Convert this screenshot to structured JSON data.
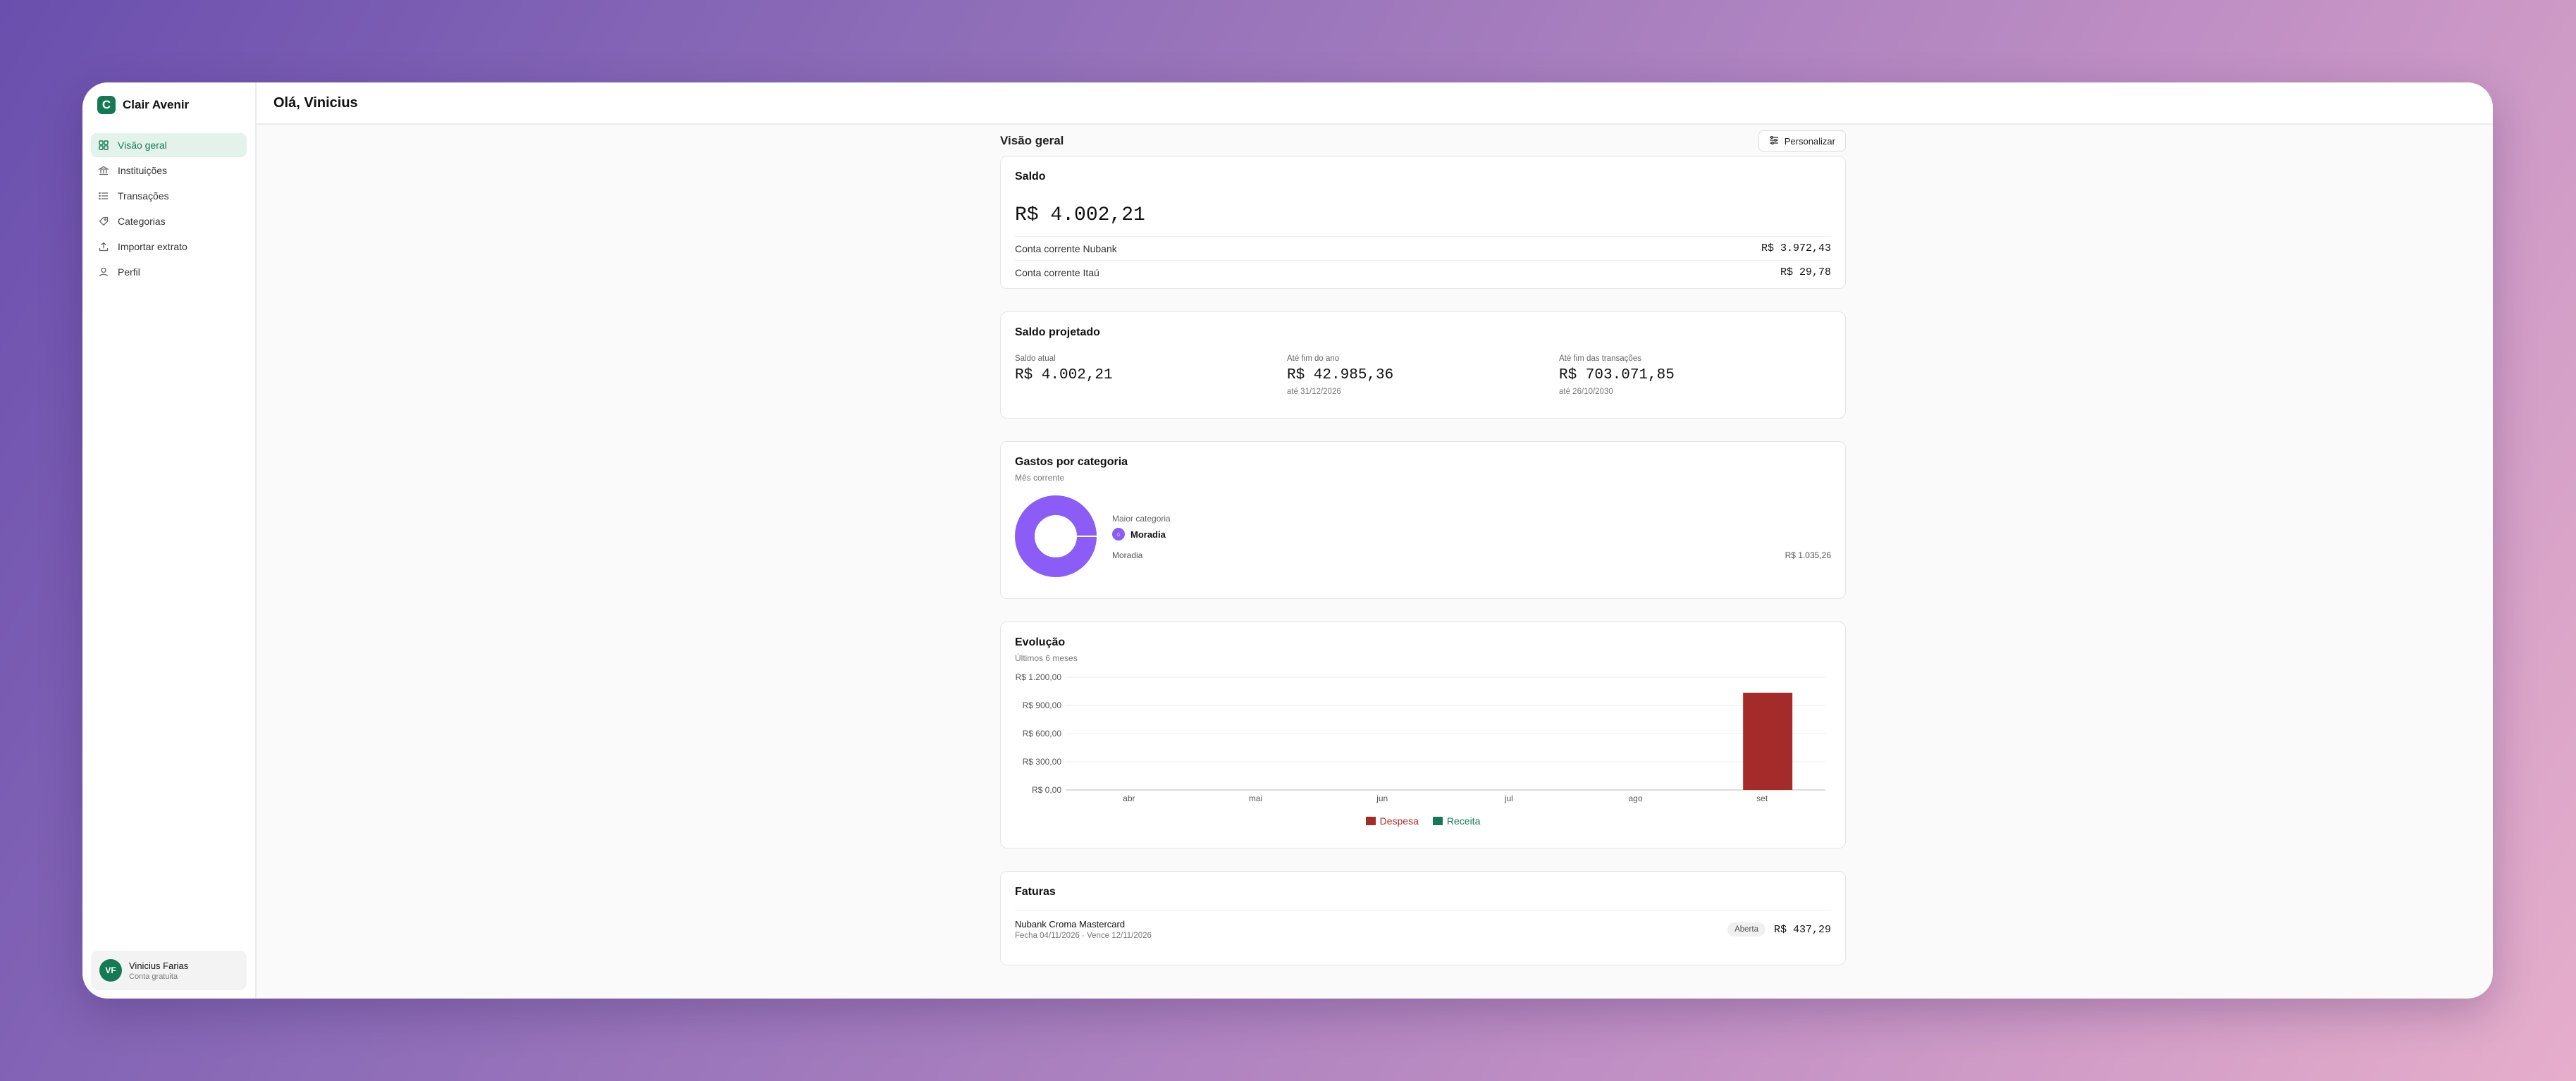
{
  "brand": {
    "name": "Clair Avenir",
    "logo_letter": "C"
  },
  "sidebar": {
    "items": [
      {
        "label": "Visão geral",
        "icon": "grid-icon",
        "active": true
      },
      {
        "label": "Instituições",
        "icon": "bank-icon",
        "active": false
      },
      {
        "label": "Transações",
        "icon": "list-icon",
        "active": false
      },
      {
        "label": "Categorias",
        "icon": "tag-icon",
        "active": false
      },
      {
        "label": "Importar extrato",
        "icon": "upload-icon",
        "active": false
      },
      {
        "label": "Perfil",
        "icon": "user-icon",
        "active": false
      }
    ]
  },
  "user": {
    "initials": "VF",
    "name": "Vinicius Farias",
    "plan": "Conta gratuita"
  },
  "header": {
    "greeting": "Olá, Vinicius"
  },
  "page": {
    "title": "Visão geral",
    "personalize_label": "Personalizar"
  },
  "saldo": {
    "title": "Saldo",
    "total": "R$ 4.002,21",
    "accounts": [
      {
        "name": "Conta corrente Nubank",
        "value": "R$ 3.972,43"
      },
      {
        "name": "Conta corrente Itaú",
        "value": "R$ 29,78"
      }
    ]
  },
  "projetado": {
    "title": "Saldo projetado",
    "items": [
      {
        "label": "Saldo atual",
        "value": "R$ 4.002,21",
        "note": ""
      },
      {
        "label": "Até fim do ano",
        "value": "R$ 42.985,36",
        "note": "até 31/12/2026"
      },
      {
        "label": "Até fim das transações",
        "value": "R$ 703.071,85",
        "note": "até 26/10/2030"
      }
    ]
  },
  "gastos": {
    "title": "Gastos por categoria",
    "subtitle": "Mês corrente",
    "maior_label": "Maior categoria",
    "maior_name": "Moradia",
    "category_name": "Moradia",
    "category_value": "R$ 1.035,26",
    "color": "#8b5cf6"
  },
  "evolucao": {
    "title": "Evolução",
    "subtitle": "Últimos 6 meses"
  },
  "chart_data": {
    "type": "bar",
    "categories": [
      "abr",
      "mai",
      "jun",
      "jul",
      "ago",
      "set"
    ],
    "series": [
      {
        "name": "Despesa",
        "color": "#a52a2a",
        "values": [
          0,
          0,
          0,
          0,
          0,
          1035.26
        ]
      },
      {
        "name": "Receita",
        "color": "#137a55",
        "values": [
          0,
          0,
          0,
          0,
          0,
          0
        ]
      }
    ],
    "ylim": [
      0,
      1200
    ],
    "yticks": [
      "R$ 0,00",
      "R$ 300,00",
      "R$ 600,00",
      "R$ 900,00",
      "R$ 1.200,00"
    ],
    "ytick_values": [
      0,
      300,
      600,
      900,
      1200
    ],
    "legend": "bottom",
    "grid": true
  },
  "faturas": {
    "title": "Faturas",
    "items": [
      {
        "name": "Nubank Croma Mastercard",
        "dates": "Fecha 04/11/2026 · Vence 12/11/2026",
        "status": "Aberta",
        "amount": "R$ 437,29"
      }
    ]
  }
}
